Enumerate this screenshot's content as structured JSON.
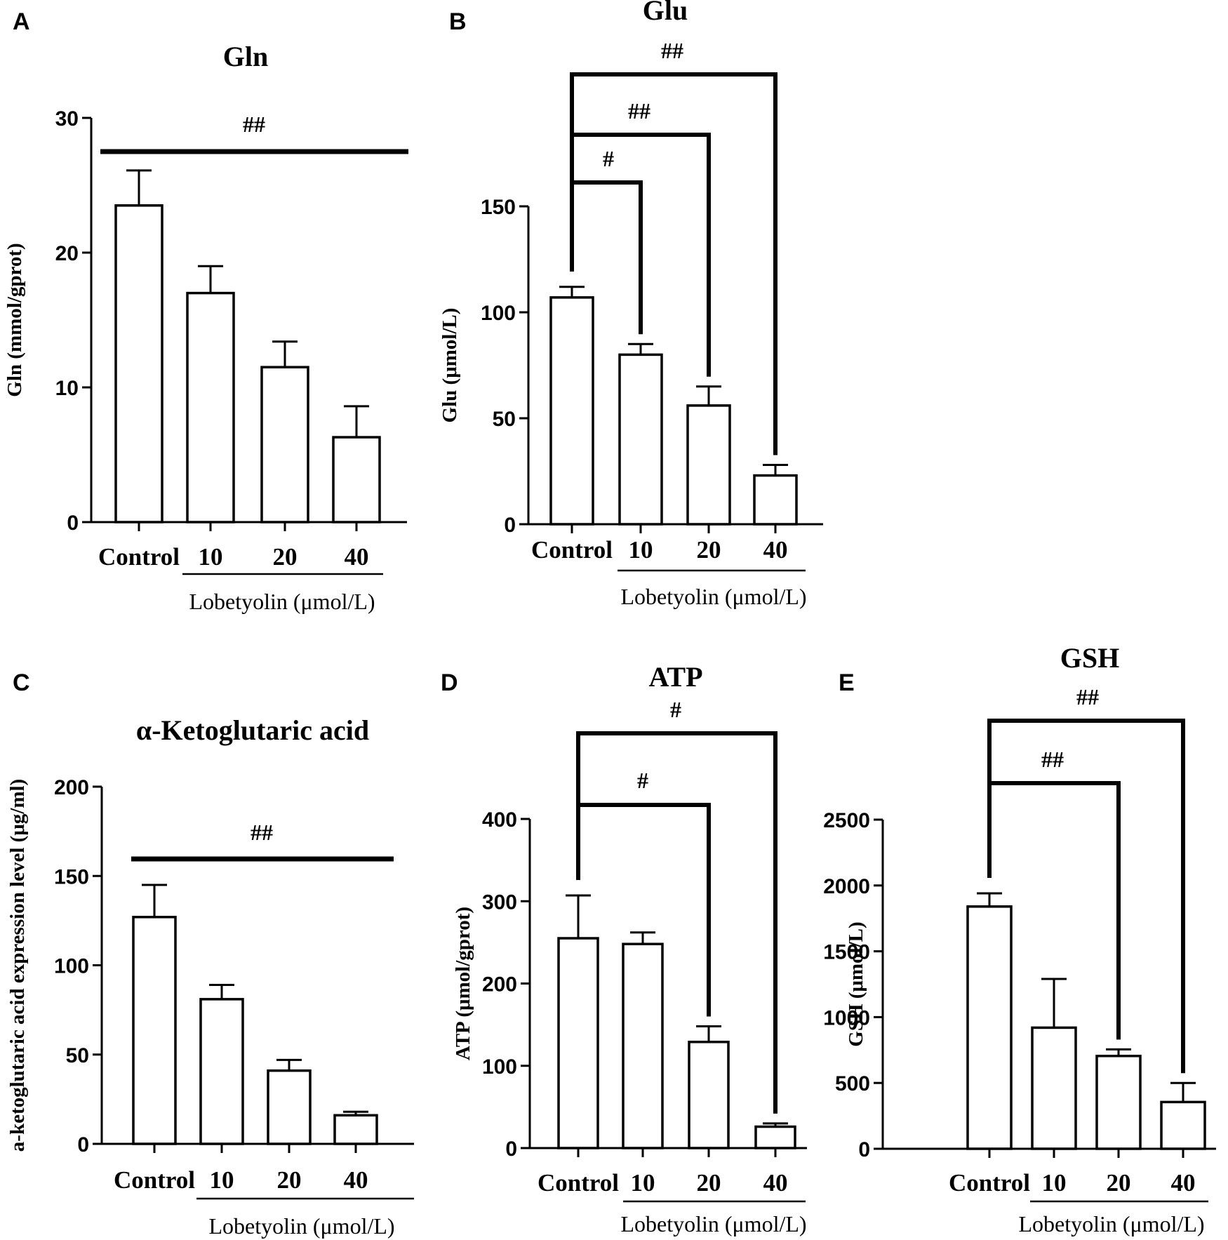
{
  "group_label": "Lobetyolin (μmol/L)",
  "chart_data": [
    {
      "panel": "A",
      "type": "bar",
      "title": "Gln",
      "ylabel": "Gln (mmol/gprot)",
      "ylim": [
        0,
        30
      ],
      "yticks": [
        0,
        10,
        20,
        30
      ],
      "categories": [
        "Control",
        "10",
        "20",
        "40"
      ],
      "values": [
        23.5,
        17.0,
        11.5,
        6.3
      ],
      "errors": [
        2.6,
        2.0,
        1.9,
        2.3
      ],
      "significance": [
        {
          "type": "line",
          "label": "##"
        }
      ]
    },
    {
      "panel": "B",
      "type": "bar",
      "title": "Glu",
      "ylabel": "Glu (μmol/L)",
      "ylim": [
        0,
        150
      ],
      "yticks": [
        0,
        50,
        100,
        150
      ],
      "categories": [
        "Control",
        "10",
        "20",
        "40"
      ],
      "values": [
        107,
        80,
        56,
        23
      ],
      "errors": [
        5,
        5,
        9,
        5
      ],
      "significance": [
        {
          "type": "bracket",
          "from": 0,
          "to": 1,
          "label": "#"
        },
        {
          "type": "bracket",
          "from": 0,
          "to": 2,
          "label": "##"
        },
        {
          "type": "bracket",
          "from": 0,
          "to": 3,
          "label": "##"
        }
      ]
    },
    {
      "panel": "C",
      "type": "bar",
      "title": "α-Ketoglutaric acid",
      "ylabel": "a-ketoglutaric acid expression level (μg/ml)",
      "ylim": [
        0,
        200
      ],
      "yticks": [
        0,
        50,
        100,
        150,
        200
      ],
      "categories": [
        "Control",
        "10",
        "20",
        "40"
      ],
      "values": [
        127,
        81,
        41,
        16
      ],
      "errors": [
        18,
        8,
        6,
        2
      ],
      "significance": [
        {
          "type": "line",
          "label": "##"
        }
      ]
    },
    {
      "panel": "D",
      "type": "bar",
      "title": "ATP",
      "ylabel": "ATP (μmol/gprot)",
      "ylim": [
        0,
        400
      ],
      "yticks": [
        0,
        100,
        200,
        300,
        400
      ],
      "categories": [
        "Control",
        "10",
        "20",
        "40"
      ],
      "values": [
        255,
        248,
        129,
        26
      ],
      "errors": [
        52,
        14,
        19,
        4
      ],
      "significance": [
        {
          "type": "bracket",
          "from": 0,
          "to": 2,
          "label": "#"
        },
        {
          "type": "bracket",
          "from": 0,
          "to": 3,
          "label": "#"
        }
      ]
    },
    {
      "panel": "E",
      "type": "bar",
      "title": "GSH",
      "ylabel": "GSH (μmol/L)",
      "ylim": [
        0,
        2500
      ],
      "yticks": [
        0,
        500,
        1000,
        1500,
        2000,
        2500
      ],
      "categories": [
        "Control",
        "10",
        "20",
        "40"
      ],
      "values": [
        1840,
        920,
        705,
        355
      ],
      "errors": [
        100,
        370,
        50,
        145
      ],
      "significance": [
        {
          "type": "bracket",
          "from": 0,
          "to": 2,
          "label": "##"
        },
        {
          "type": "bracket",
          "from": 0,
          "to": 3,
          "label": "##"
        }
      ]
    }
  ]
}
